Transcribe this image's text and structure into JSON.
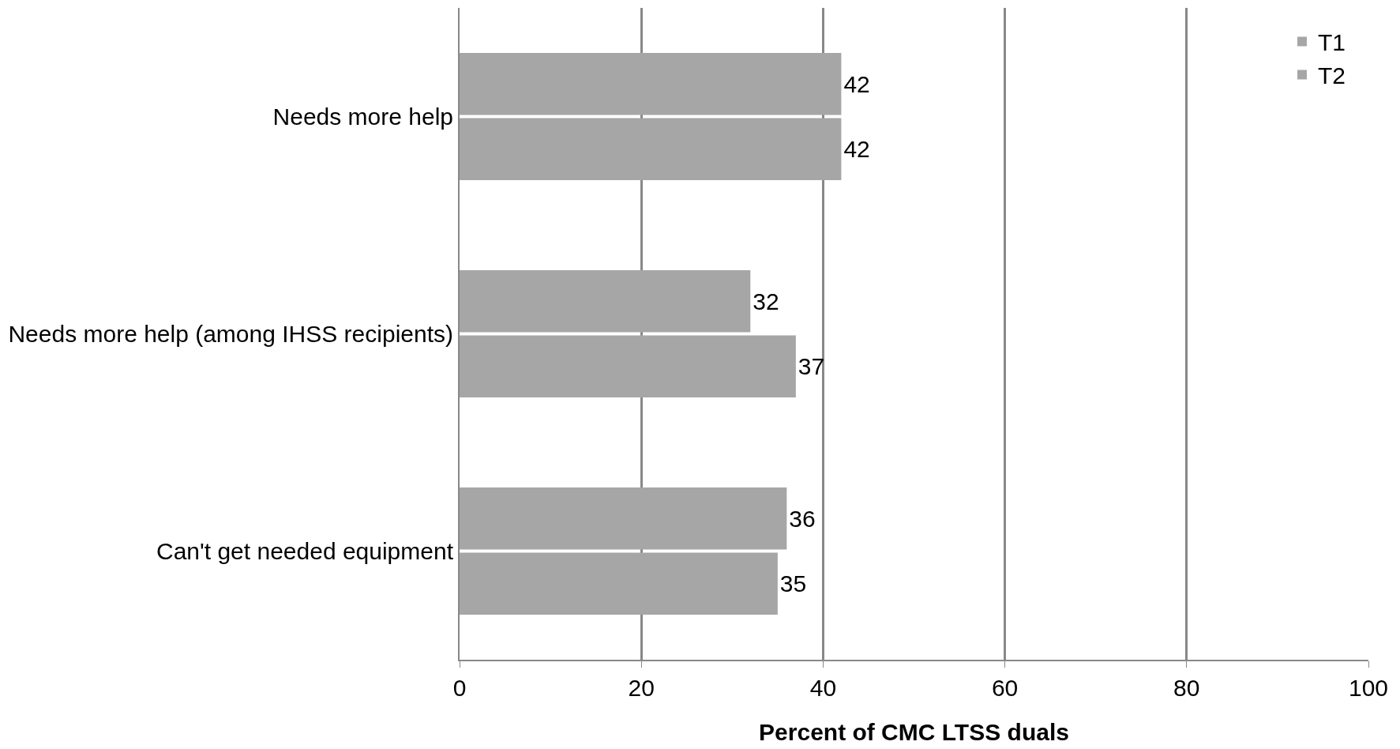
{
  "chart_data": {
    "type": "bar",
    "orientation": "horizontal",
    "categories": [
      "Needs more help",
      "Needs more help (among IHSS recipients)",
      "Can't get needed equipment"
    ],
    "series": [
      {
        "name": "T1",
        "color": "#a6a6a6",
        "values": [
          42,
          32,
          36
        ]
      },
      {
        "name": "T2",
        "color": "#a6a6a6",
        "values": [
          42,
          37,
          35
        ]
      }
    ],
    "xlabel": "Percent of CMC LTSS duals",
    "xlim": [
      0,
      100
    ],
    "xticks": [
      0,
      20,
      40,
      60,
      80,
      100
    ],
    "grid": "x",
    "legend": "top right",
    "data_labels": true
  }
}
